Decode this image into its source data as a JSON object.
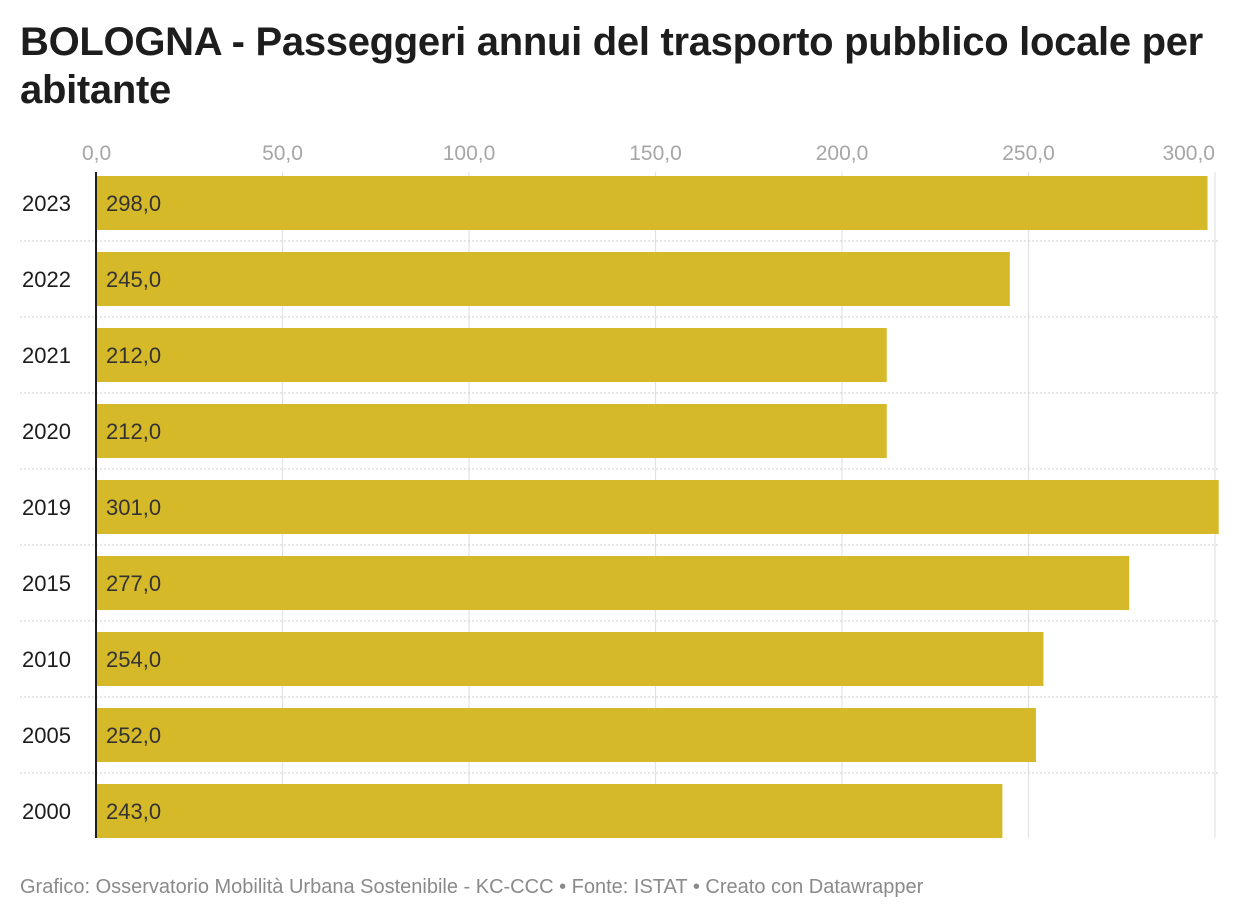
{
  "title": "BOLOGNA - Passeggeri annui del trasporto pubblico locale per abitante",
  "footer": {
    "credit": "Grafico: Osservatorio Mobilità Urbana Sostenibile - KC-CCC",
    "source": "Fonte: ISTAT",
    "made_with": "Creato con Datawrapper",
    "separator": "•"
  },
  "chart_data": {
    "type": "bar",
    "orientation": "horizontal",
    "title": "BOLOGNA - Passeggeri annui del trasporto pubblico locale per abitante",
    "categories": [
      "2023",
      "2022",
      "2021",
      "2020",
      "2019",
      "2015",
      "2010",
      "2005",
      "2000"
    ],
    "values": [
      298.0,
      245.0,
      212.0,
      212.0,
      301.0,
      277.0,
      254.0,
      252.0,
      243.0
    ],
    "value_labels": [
      "298,0",
      "245,0",
      "212,0",
      "212,0",
      "301,0",
      "277,0",
      "254,0",
      "252,0",
      "243,0"
    ],
    "xlim": [
      0,
      300
    ],
    "x_ticks": [
      0,
      50,
      100,
      150,
      200,
      250,
      300
    ],
    "x_tick_labels": [
      "0,0",
      "50,0",
      "100,0",
      "150,0",
      "200,0",
      "250,0",
      "300,0"
    ],
    "xlabel": "",
    "ylabel": "",
    "grid": true,
    "bar_color": "#d6b928",
    "grid_color": "#e2e2e2",
    "axis_color": "#1d1d1d"
  }
}
